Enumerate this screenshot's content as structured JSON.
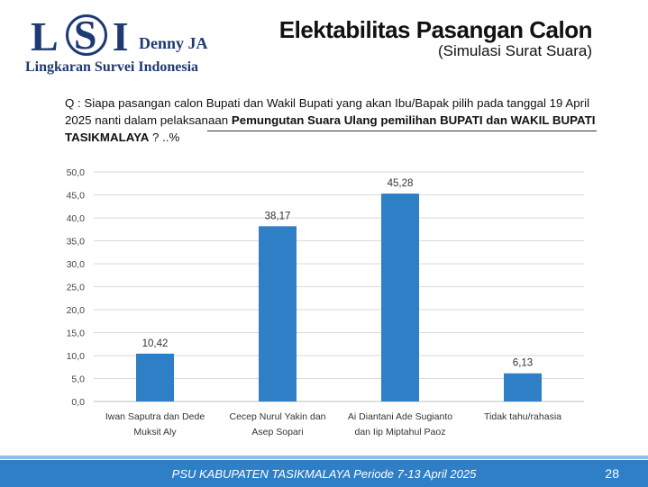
{
  "logo": {
    "letters_left": "L",
    "letters_mid": "S",
    "letters_right": "I",
    "brand": "Denny JA",
    "subtitle": "Lingkaran Survei Indonesia"
  },
  "header": {
    "title": "Elektabilitas Pasangan Calon",
    "subtitle": "(Simulasi Surat Suara)"
  },
  "question": {
    "part1": "Q : Siapa pasangan calon Bupati dan Wakil Bupati yang akan Ibu/Bapak pilih  pada tanggal 19 April 2025 nanti dalam pelaksanaan ",
    "part2": "Pemungutan Suara Ulang pemilihan BUPATI dan WAKIL BUPATI TASIKMALAYA",
    "part3": " ? ..%"
  },
  "chart_data": {
    "type": "bar",
    "categories": [
      [
        "Iwan Saputra dan Dede",
        "Muksit Aly"
      ],
      [
        "Cecep Nurul Yakin dan",
        "Asep Sopari"
      ],
      [
        "Ai Diantani Ade Sugianto",
        "dan Iip Miptahul Paoz"
      ],
      [
        "Tidak tahu/rahasia"
      ]
    ],
    "values": [
      10.42,
      38.17,
      45.28,
      6.13
    ],
    "value_labels": [
      "10,42",
      "38,17",
      "45,28",
      "6,13"
    ],
    "ylim": [
      0,
      50
    ],
    "yticks": [
      "0,0",
      "5,0",
      "10,0",
      "15,0",
      "20,0",
      "25,0",
      "30,0",
      "35,0",
      "40,0",
      "45,0",
      "50,0"
    ],
    "grid": true,
    "bar_color": "#2e7fc6"
  },
  "footer": {
    "text": "PSU KABUPATEN TASIKMALAYA Periode 7-13 April 2025",
    "page": "28"
  }
}
